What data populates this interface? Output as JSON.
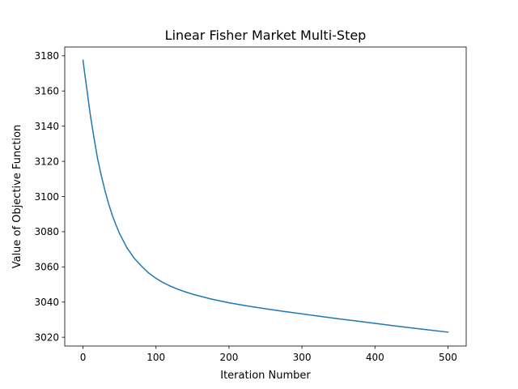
{
  "chart_data": {
    "type": "line",
    "title": "Linear Fisher Market Multi-Step",
    "xlabel": "Iteration Number",
    "ylabel": "Value of Objective Function",
    "xlim": [
      -25,
      525
    ],
    "ylim": [
      3015,
      3185
    ],
    "x_ticks": [
      0,
      100,
      200,
      300,
      400,
      500
    ],
    "y_ticks": [
      3020,
      3040,
      3060,
      3080,
      3100,
      3120,
      3140,
      3160,
      3180
    ],
    "grid": false,
    "legend": "none",
    "series": [
      {
        "color": "#1f77b4",
        "x": [
          0,
          2,
          5,
          10,
          15,
          20,
          25,
          30,
          35,
          40,
          45,
          50,
          60,
          70,
          80,
          90,
          100,
          110,
          120,
          130,
          140,
          150,
          175,
          200,
          225,
          250,
          275,
          300,
          325,
          350,
          375,
          400,
          425,
          450,
          475,
          500
        ],
        "y": [
          3177.5,
          3171,
          3162,
          3146.5,
          3133.5,
          3121.5,
          3112,
          3103.5,
          3096,
          3089.5,
          3084,
          3079,
          3071,
          3065,
          3060.5,
          3056.5,
          3053.5,
          3051,
          3049,
          3047.3,
          3045.8,
          3044.5,
          3041.8,
          3039.6,
          3037.8,
          3036.2,
          3034.7,
          3033.3,
          3031.9,
          3030.5,
          3029.2,
          3027.9,
          3026.6,
          3025.3,
          3024.1,
          3022.9
        ]
      }
    ]
  }
}
